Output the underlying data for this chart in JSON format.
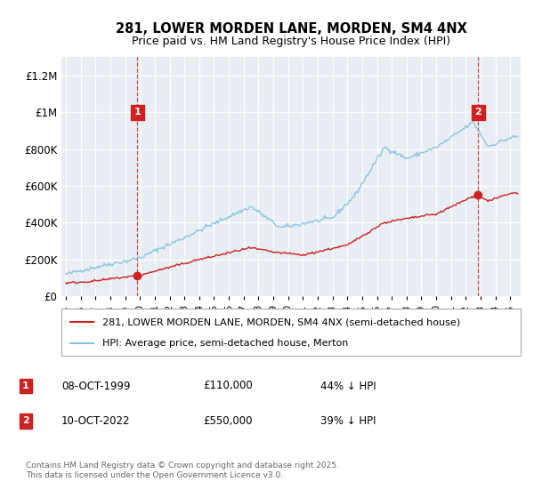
{
  "title": "281, LOWER MORDEN LANE, MORDEN, SM4 4NX",
  "subtitle": "Price paid vs. HM Land Registry's House Price Index (HPI)",
  "legend_line1": "281, LOWER MORDEN LANE, MORDEN, SM4 4NX (semi-detached house)",
  "legend_line2": "HPI: Average price, semi-detached house, Merton",
  "footnote": "Contains HM Land Registry data © Crown copyright and database right 2025.\nThis data is licensed under the Open Government Licence v3.0.",
  "sale1_date": "08-OCT-1999",
  "sale1_price": 110000,
  "sale1_label": "44% ↓ HPI",
  "sale2_date": "10-OCT-2022",
  "sale2_price": 550000,
  "sale2_label": "39% ↓ HPI",
  "hpi_color": "#85c1e0",
  "price_color": "#cc2222",
  "annotation_box_color": "#cc2222",
  "ylim_max": 1300000,
  "background_color": "#ffffff",
  "plot_bg_color": "#e8eef4"
}
